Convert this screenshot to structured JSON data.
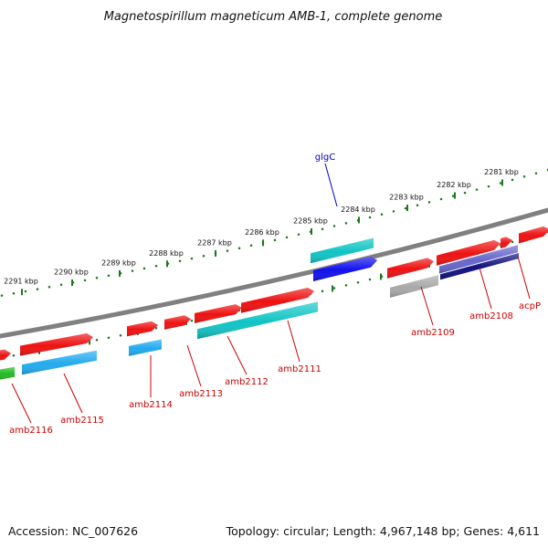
{
  "title": "Magnetospirillum magneticum AMB-1, complete genome",
  "footer": {
    "accession": "Accession: NC_007626",
    "topology": "Topology: circular; Length: 4,967,148 bp; Genes: 4,611"
  },
  "colors": {
    "backbone": "#808080",
    "tick": "#1a7a1a",
    "label_red": "#cc0000",
    "label_blue": "#0000cc",
    "red": "#ee1111",
    "cyan": "#11c4c4",
    "sky": "#22aaee",
    "blue": "#1111ee",
    "green": "#22bb22",
    "gray": "#a8a8a8",
    "navy": "#101080",
    "slate": "#6666cc"
  },
  "ticks": [
    {
      "label": "2291 kbp"
    },
    {
      "label": "2290 kbp"
    },
    {
      "label": "2289 kbp"
    },
    {
      "label": "2288 kbp"
    },
    {
      "label": "2287 kbp"
    },
    {
      "label": "2286 kbp"
    },
    {
      "label": "2285 kbp"
    },
    {
      "label": "2284 kbp"
    },
    {
      "label": "2283 kbp"
    },
    {
      "label": "2282 kbp"
    },
    {
      "label": "2281 kbp"
    }
  ],
  "genes": [
    {
      "name": "glgC",
      "color_key": "label_blue"
    },
    {
      "name": "amb2116",
      "color_key": "label_red"
    },
    {
      "name": "amb2115",
      "color_key": "label_red"
    },
    {
      "name": "amb2114",
      "color_key": "label_red"
    },
    {
      "name": "amb2113",
      "color_key": "label_red"
    },
    {
      "name": "amb2112",
      "color_key": "label_red"
    },
    {
      "name": "amb2111",
      "color_key": "label_red"
    },
    {
      "name": "amb2109",
      "color_key": "label_red"
    },
    {
      "name": "amb2108",
      "color_key": "label_red"
    },
    {
      "name": "acpP",
      "color_key": "label_red"
    }
  ],
  "features": [
    {
      "color_key": "red"
    },
    {
      "color_key": "red"
    },
    {
      "color_key": "red"
    },
    {
      "color_key": "red"
    },
    {
      "color_key": "red"
    },
    {
      "color_key": "red"
    },
    {
      "color_key": "red"
    },
    {
      "color_key": "red"
    },
    {
      "color_key": "red"
    },
    {
      "color_key": "red"
    },
    {
      "color_key": "cyan"
    },
    {
      "color_key": "blue"
    },
    {
      "color_key": "green"
    },
    {
      "color_key": "sky"
    },
    {
      "color_key": "sky"
    },
    {
      "color_key": "cyan"
    },
    {
      "color_key": "gray"
    },
    {
      "color_key": "slate"
    },
    {
      "color_key": "navy"
    }
  ]
}
